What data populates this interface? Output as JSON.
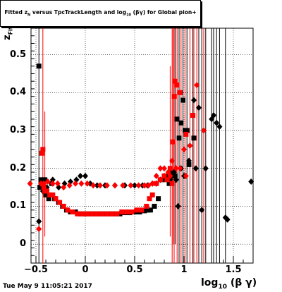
{
  "chart_data": {
    "type": "scatter",
    "title": {
      "part1": "Fitted z",
      "sub1": "N",
      "part2": " versus TpcTrackLength and log",
      "sub2": "10",
      "part3": " (βγ) for Global pion+"
    },
    "xlabel": {
      "main": "log",
      "sub": "10",
      "tail": " (β γ)"
    },
    "ylabel": {
      "main": "z",
      "sub": "Fit"
    },
    "xlim": [
      -0.55,
      1.7
    ],
    "ylim": [
      -0.05,
      0.57
    ],
    "grid": true,
    "x_ticks": [
      {
        "v": -0.5,
        "label": "−0.5"
      },
      {
        "v": 0,
        "label": "0"
      },
      {
        "v": 0.5,
        "label": "0.5"
      },
      {
        "v": 1,
        "label": "1"
      },
      {
        "v": 1.5,
        "label": "1.5"
      }
    ],
    "y_ticks": [
      {
        "v": 0,
        "label": "0"
      },
      {
        "v": 0.1,
        "label": "0.1"
      },
      {
        "v": 0.2,
        "label": "0.2"
      },
      {
        "v": 0.3,
        "label": "0.3"
      },
      {
        "v": 0.4,
        "label": "0.4"
      },
      {
        "v": 0.5,
        "label": "0.5"
      }
    ],
    "series": [
      {
        "color": "#000000",
        "marker": "square",
        "points": [
          [
            -0.47,
            0.47
          ],
          [
            -0.46,
            0.15
          ],
          [
            -0.45,
            0.17
          ],
          [
            -0.43,
            0.15
          ],
          [
            -0.41,
            0.17
          ],
          [
            -0.4,
            0.13
          ],
          [
            -0.37,
            0.12
          ],
          [
            -0.34,
            0.16
          ],
          [
            -0.31,
            0.12
          ],
          [
            -0.27,
            0.11
          ],
          [
            -0.23,
            0.1
          ],
          [
            -0.19,
            0.09
          ],
          [
            -0.15,
            0.085
          ],
          [
            -0.1,
            0.085
          ],
          [
            -0.05,
            0.08
          ],
          [
            0.0,
            0.08
          ],
          [
            0.05,
            0.08
          ],
          [
            0.1,
            0.08
          ],
          [
            0.15,
            0.08
          ],
          [
            0.2,
            0.08
          ],
          [
            0.25,
            0.08
          ],
          [
            0.3,
            0.08
          ],
          [
            0.35,
            0.08
          ],
          [
            0.4,
            0.083
          ],
          [
            0.45,
            0.083
          ],
          [
            0.5,
            0.085
          ],
          [
            0.55,
            0.085
          ],
          [
            0.6,
            0.088
          ],
          [
            0.63,
            0.09
          ],
          [
            0.66,
            0.09
          ],
          [
            0.7,
            0.1
          ],
          [
            0.74,
            0.12
          ],
          [
            0.78,
            0.17
          ],
          [
            0.82,
            0.18
          ],
          [
            0.85,
            0.16
          ],
          [
            0.88,
            0.19
          ],
          [
            0.91,
            0.18
          ],
          [
            0.93,
            0.33
          ],
          [
            0.95,
            0.28
          ],
          [
            0.97,
            0.32
          ],
          [
            0.99,
            0.38
          ],
          [
            1.01,
            0.3
          ],
          [
            1.03,
            0.3
          ],
          [
            1.05,
            0.21
          ],
          [
            1.1,
            0.28
          ]
        ]
      },
      {
        "color": "#000000",
        "marker": "diamond",
        "points": [
          [
            -0.47,
            0.06
          ],
          [
            -0.43,
            0.14
          ],
          [
            -0.39,
            0.15
          ],
          [
            -0.33,
            0.17
          ],
          [
            -0.27,
            0.15
          ],
          [
            -0.21,
            0.16
          ],
          [
            -0.15,
            0.165
          ],
          [
            -0.09,
            0.17
          ],
          [
            -0.05,
            0.18
          ],
          [
            0.0,
            0.18
          ],
          [
            0.05,
            0.16
          ],
          [
            0.12,
            0.155
          ],
          [
            0.2,
            0.155
          ],
          [
            0.3,
            0.155
          ],
          [
            0.4,
            0.155
          ],
          [
            0.5,
            0.155
          ],
          [
            0.58,
            0.155
          ],
          [
            0.63,
            0.155
          ],
          [
            0.68,
            0.16
          ],
          [
            0.72,
            0.16
          ],
          [
            0.76,
            0.17
          ],
          [
            0.8,
            0.18
          ],
          [
            0.83,
            0.17
          ],
          [
            0.86,
            0.17
          ],
          [
            0.88,
            0.18
          ],
          [
            0.9,
            0.19
          ],
          [
            0.92,
            0.17
          ],
          [
            0.94,
            0.1
          ],
          [
            0.97,
            0.2
          ],
          [
            1.0,
            0.18
          ],
          [
            1.05,
            0.22
          ],
          [
            1.1,
            0.38
          ],
          [
            1.12,
            0.2
          ],
          [
            1.15,
            0.36
          ],
          [
            1.18,
            0.09
          ],
          [
            1.22,
            0.2
          ],
          [
            1.28,
            0.33
          ],
          [
            1.3,
            0.34
          ],
          [
            1.33,
            0.32
          ],
          [
            1.36,
            0.31
          ],
          [
            1.42,
            0.07
          ],
          [
            1.44,
            0.065
          ],
          [
            1.68,
            0.165
          ]
        ]
      },
      {
        "color": "#ff0000",
        "marker": "square",
        "points": [
          [
            -0.44,
            0.24
          ],
          [
            -0.43,
            0.25
          ],
          [
            -0.42,
            0.15
          ],
          [
            -0.41,
            0.14
          ],
          [
            -0.39,
            0.14
          ],
          [
            -0.36,
            0.13
          ],
          [
            -0.33,
            0.13
          ],
          [
            -0.3,
            0.12
          ],
          [
            -0.26,
            0.11
          ],
          [
            -0.22,
            0.1
          ],
          [
            -0.18,
            0.09
          ],
          [
            -0.13,
            0.085
          ],
          [
            -0.08,
            0.08
          ],
          [
            -0.03,
            0.08
          ],
          [
            0.02,
            0.08
          ],
          [
            0.07,
            0.08
          ],
          [
            0.12,
            0.08
          ],
          [
            0.17,
            0.08
          ],
          [
            0.22,
            0.08
          ],
          [
            0.27,
            0.08
          ],
          [
            0.32,
            0.08
          ],
          [
            0.37,
            0.085
          ],
          [
            0.42,
            0.085
          ],
          [
            0.47,
            0.085
          ],
          [
            0.52,
            0.09
          ],
          [
            0.57,
            0.09
          ],
          [
            0.62,
            0.1
          ],
          [
            0.65,
            0.12
          ],
          [
            0.68,
            0.13
          ],
          [
            0.72,
            0.16
          ],
          [
            0.76,
            0.17
          ],
          [
            0.8,
            0.18
          ],
          [
            0.83,
            0.17
          ],
          [
            0.86,
            0.2
          ],
          [
            0.88,
            0.16
          ],
          [
            0.89,
            0.27
          ],
          [
            0.9,
            0.39
          ],
          [
            0.91,
            0.43
          ],
          [
            0.93,
            0.42
          ],
          [
            0.96,
            0.4
          ],
          [
            1.02,
            0.29
          ],
          [
            1.09,
            0.34
          ]
        ]
      },
      {
        "color": "#ff0000",
        "marker": "diamond",
        "points": [
          [
            -0.56,
            0.16
          ],
          [
            -0.47,
            0.04
          ],
          [
            -0.45,
            0.16
          ],
          [
            -0.42,
            0.16
          ],
          [
            -0.38,
            0.165
          ],
          [
            -0.33,
            0.16
          ],
          [
            -0.28,
            0.16
          ],
          [
            -0.22,
            0.15
          ],
          [
            -0.16,
            0.155
          ],
          [
            -0.1,
            0.16
          ],
          [
            -0.04,
            0.16
          ],
          [
            0.02,
            0.16
          ],
          [
            0.08,
            0.155
          ],
          [
            0.15,
            0.155
          ],
          [
            0.22,
            0.155
          ],
          [
            0.3,
            0.155
          ],
          [
            0.38,
            0.155
          ],
          [
            0.46,
            0.155
          ],
          [
            0.54,
            0.155
          ],
          [
            0.6,
            0.155
          ],
          [
            0.64,
            0.155
          ],
          [
            0.68,
            0.16
          ],
          [
            0.72,
            0.18
          ],
          [
            0.76,
            0.2
          ],
          [
            0.8,
            0.2
          ],
          [
            0.84,
            0.19
          ],
          [
            0.86,
            0.18
          ],
          [
            0.88,
            0.22
          ],
          [
            0.92,
            0.2
          ],
          [
            0.96,
            0.2
          ],
          [
            1.0,
            0.25
          ],
          [
            1.02,
            0.18
          ],
          [
            1.06,
            0.26
          ],
          [
            1.13,
            0.42
          ],
          [
            1.2,
            0.3
          ]
        ]
      }
    ],
    "error_bars": [
      {
        "x": -0.47,
        "lo": -0.05,
        "hi": 0.57,
        "color": "#000000"
      },
      {
        "x": -0.43,
        "lo": -0.05,
        "hi": 0.57,
        "color": "#ff0000"
      },
      {
        "x": -0.41,
        "lo": 0.02,
        "hi": 0.35,
        "color": "#ff0000"
      },
      {
        "x": 0.86,
        "lo": 0.02,
        "hi": 0.47,
        "color": "#ff0000"
      },
      {
        "x": 0.88,
        "lo": -0.05,
        "hi": 0.57,
        "color": "#ff0000"
      },
      {
        "x": 0.89,
        "lo": 0.0,
        "hi": 0.57,
        "color": "#ff0000"
      },
      {
        "x": 0.9,
        "lo": -0.05,
        "hi": 0.57,
        "color": "#ff0000"
      },
      {
        "x": 0.91,
        "lo": 0.0,
        "hi": 0.57,
        "color": "#000000"
      },
      {
        "x": 0.93,
        "lo": -0.05,
        "hi": 0.57,
        "color": "#ff0000"
      },
      {
        "x": 0.95,
        "lo": -0.05,
        "hi": 0.57,
        "color": "#000000"
      },
      {
        "x": 0.97,
        "lo": -0.05,
        "hi": 0.57,
        "color": "#ff0000"
      },
      {
        "x": 0.99,
        "lo": -0.05,
        "hi": 0.57,
        "color": "#000000"
      },
      {
        "x": 1.01,
        "lo": -0.05,
        "hi": 0.57,
        "color": "#ff0000"
      },
      {
        "x": 1.03,
        "lo": -0.05,
        "hi": 0.57,
        "color": "#000000"
      },
      {
        "x": 1.06,
        "lo": -0.05,
        "hi": 0.57,
        "color": "#ff0000"
      },
      {
        "x": 1.09,
        "lo": -0.05,
        "hi": 0.57,
        "color": "#000000"
      },
      {
        "x": 1.1,
        "lo": -0.05,
        "hi": 0.57,
        "color": "#ff0000"
      },
      {
        "x": 1.13,
        "lo": -0.05,
        "hi": 0.57,
        "color": "#ff0000"
      },
      {
        "x": 1.15,
        "lo": -0.05,
        "hi": 0.57,
        "color": "#000000"
      },
      {
        "x": 1.18,
        "lo": -0.05,
        "hi": 0.57,
        "color": "#000000"
      },
      {
        "x": 1.2,
        "lo": -0.05,
        "hi": 0.57,
        "color": "#ff0000"
      },
      {
        "x": 1.22,
        "lo": -0.05,
        "hi": 0.57,
        "color": "#000000"
      },
      {
        "x": 1.28,
        "lo": -0.05,
        "hi": 0.57,
        "color": "#000000"
      },
      {
        "x": 1.3,
        "lo": -0.05,
        "hi": 0.57,
        "color": "#000000"
      },
      {
        "x": 1.33,
        "lo": -0.05,
        "hi": 0.57,
        "color": "#000000"
      },
      {
        "x": 1.36,
        "lo": -0.05,
        "hi": 0.57,
        "color": "#000000"
      },
      {
        "x": 1.42,
        "lo": -0.05,
        "hi": 0.57,
        "color": "#000000"
      }
    ]
  },
  "footer": {
    "timestamp": "Tue May  9 11:05:21 2017"
  }
}
